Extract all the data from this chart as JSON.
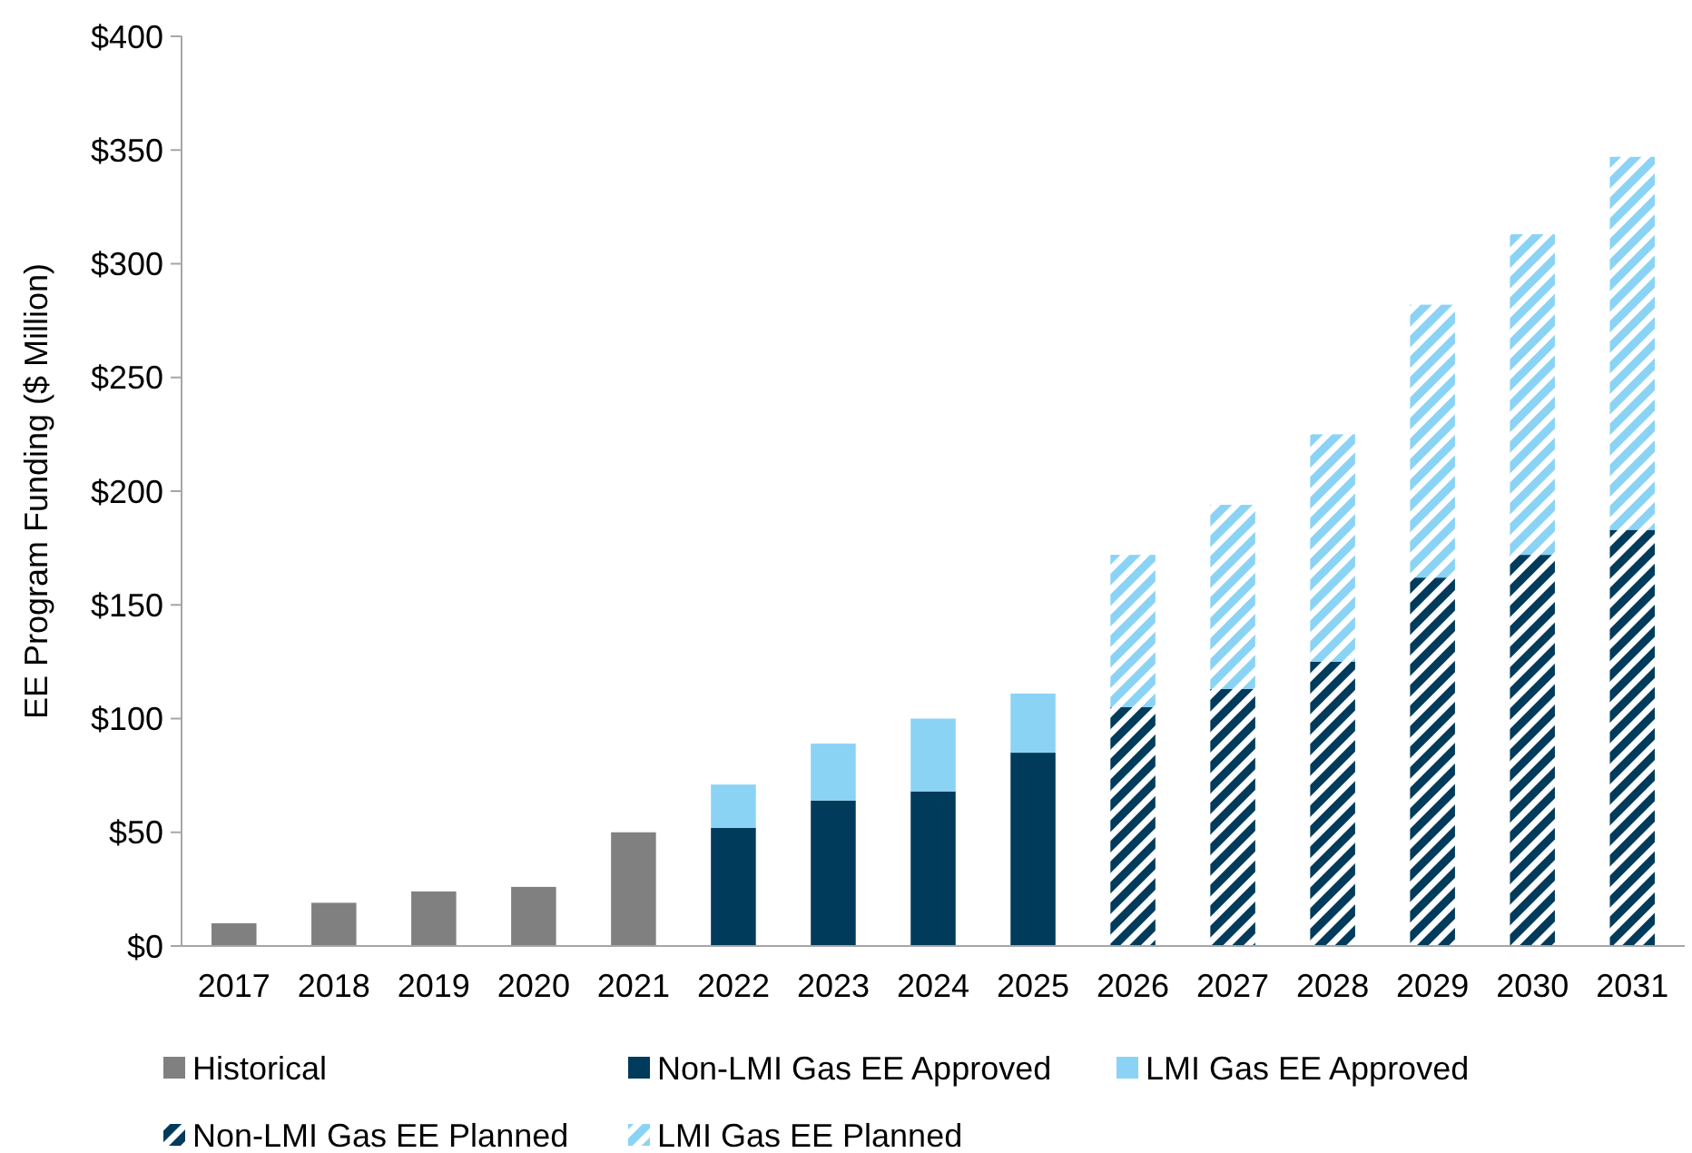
{
  "chart_data": {
    "type": "bar",
    "ylabel": "EE Program Funding ($ Million)",
    "stacked": true,
    "legend": "bottom",
    "grid": false,
    "categories": [
      "2017",
      "2018",
      "2019",
      "2020",
      "2021",
      "2022",
      "2023",
      "2024",
      "2025",
      "2026",
      "2027",
      "2028",
      "2029",
      "2030",
      "2031"
    ],
    "ylim": [
      0,
      400
    ],
    "yticks": [
      {
        "value": 0,
        "label": "$0"
      },
      {
        "value": 50,
        "label": "$50"
      },
      {
        "value": 100,
        "label": "$100"
      },
      {
        "value": 150,
        "label": "$150"
      },
      {
        "value": 200,
        "label": "$200"
      },
      {
        "value": 250,
        "label": "$250"
      },
      {
        "value": 300,
        "label": "$300"
      },
      {
        "value": 350,
        "label": "$350"
      },
      {
        "value": 400,
        "label": "$400"
      }
    ],
    "series": [
      {
        "name": "Historical",
        "color": "#808080",
        "values": [
          10,
          19,
          24,
          26,
          50,
          null,
          null,
          null,
          null,
          null,
          null,
          null,
          null,
          null,
          null
        ]
      },
      {
        "name": "Non-LMI Gas EE Approved",
        "color": "#003b5c",
        "values": [
          null,
          null,
          null,
          null,
          null,
          52,
          64,
          68,
          85,
          null,
          null,
          null,
          null,
          null,
          null
        ]
      },
      {
        "name": "LMI Gas EE Approved",
        "color": "#8bd3f5",
        "values": [
          null,
          null,
          null,
          null,
          null,
          19,
          25,
          32,
          26,
          null,
          null,
          null,
          null,
          null,
          null
        ]
      },
      {
        "name": "Non-LMI Gas EE Planned",
        "color": "#003b5c",
        "values": [
          null,
          null,
          null,
          null,
          null,
          null,
          null,
          null,
          null,
          105,
          113,
          125,
          162,
          172,
          183
        ]
      },
      {
        "name": "LMI Gas EE Planned",
        "color": "#8bd3f5",
        "values": [
          null,
          null,
          null,
          null,
          null,
          null,
          null,
          null,
          null,
          67,
          81,
          100,
          120,
          141,
          164
        ]
      }
    ]
  }
}
